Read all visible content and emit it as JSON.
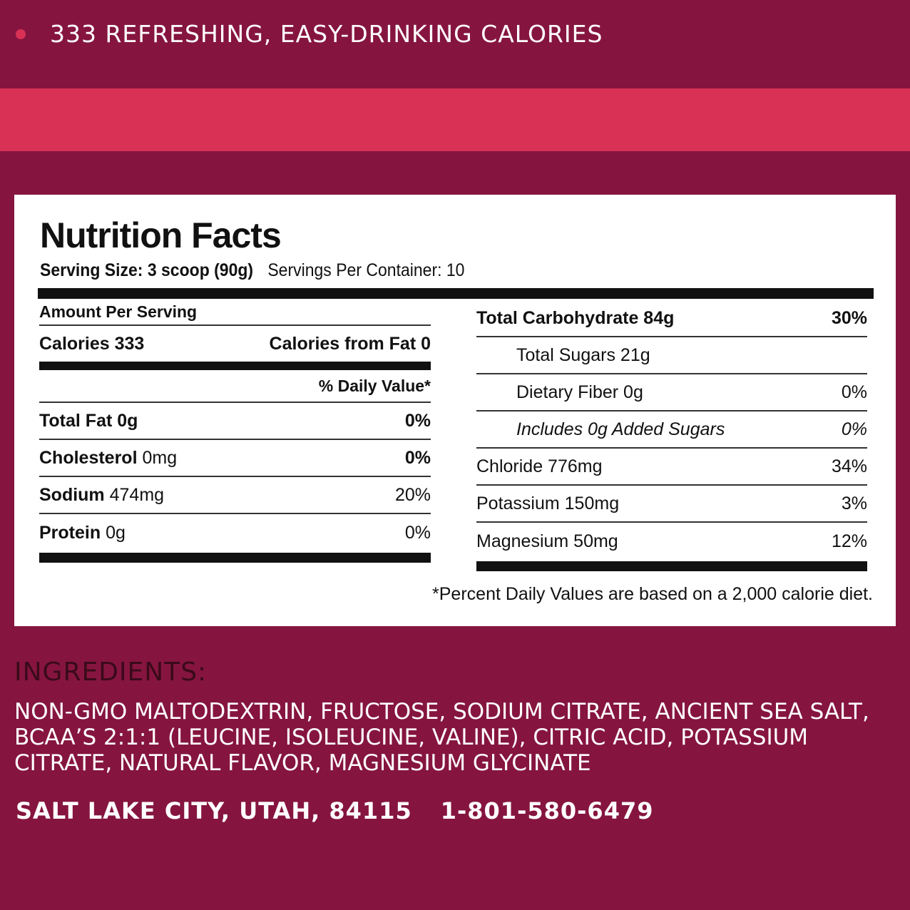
{
  "headline": "333 REFRESHING, EASY-DRINKING CALORIES",
  "colors": {
    "background": "#85153f",
    "accent": "#d93156",
    "label": "#ffffff"
  },
  "nutrition": {
    "title": "Nutrition Facts",
    "serving_size": "Serving Size: 3 scoop (90g)",
    "servings_per_container": "Servings Per Container: 10",
    "amount_per_serving": "Amount Per Serving",
    "calories": "Calories 333",
    "calories_from_fat": "Calories from Fat 0",
    "daily_value_header": "% Daily Value*",
    "left_rows": [
      {
        "bold_name": "Total Fat 0g",
        "amount": "",
        "dv": "0%"
      },
      {
        "bold_name": "Cholesterol",
        "amount": " 0mg",
        "dv": "0%"
      },
      {
        "bold_name": "Sodium",
        "amount": " 474mg",
        "dv": "20%"
      },
      {
        "bold_name": "Protein",
        "amount": " 0g",
        "dv": "0%"
      }
    ],
    "right_rows": [
      {
        "name": "Total Carbohydrate 84g",
        "dv": "30%"
      },
      {
        "name": "Total Sugars 21g",
        "dv": ""
      },
      {
        "name": "Dietary Fiber 0g",
        "dv": "0%"
      },
      {
        "name": "Includes 0g Added Sugars",
        "dv": "0%"
      },
      {
        "name": "Chloride 776mg",
        "dv": "34%"
      },
      {
        "name": "Potassium 150mg",
        "dv": "3%"
      },
      {
        "name": "Magnesium 50mg",
        "dv": "12%"
      }
    ],
    "footnote": "*Percent Daily Values are based on a 2,000 calorie diet."
  },
  "ingredients": {
    "heading": "INGREDIENTS:",
    "text": "NON-GMO MALTODEXTRIN, FRUCTOSE, SODIUM CITRATE, ANCIENT SEA SALT, BCAA’S 2:1:1 (LEUCINE, ISOLEUCINE, VALINE), CITRIC ACID, POTASSIUM CITRATE, NATURAL FLAVOR, MAGNESIUM GLYCINATE"
  },
  "contact": {
    "address": "SALT LAKE CITY, UTAH, 84115",
    "phone": "1-801-580-6479"
  }
}
